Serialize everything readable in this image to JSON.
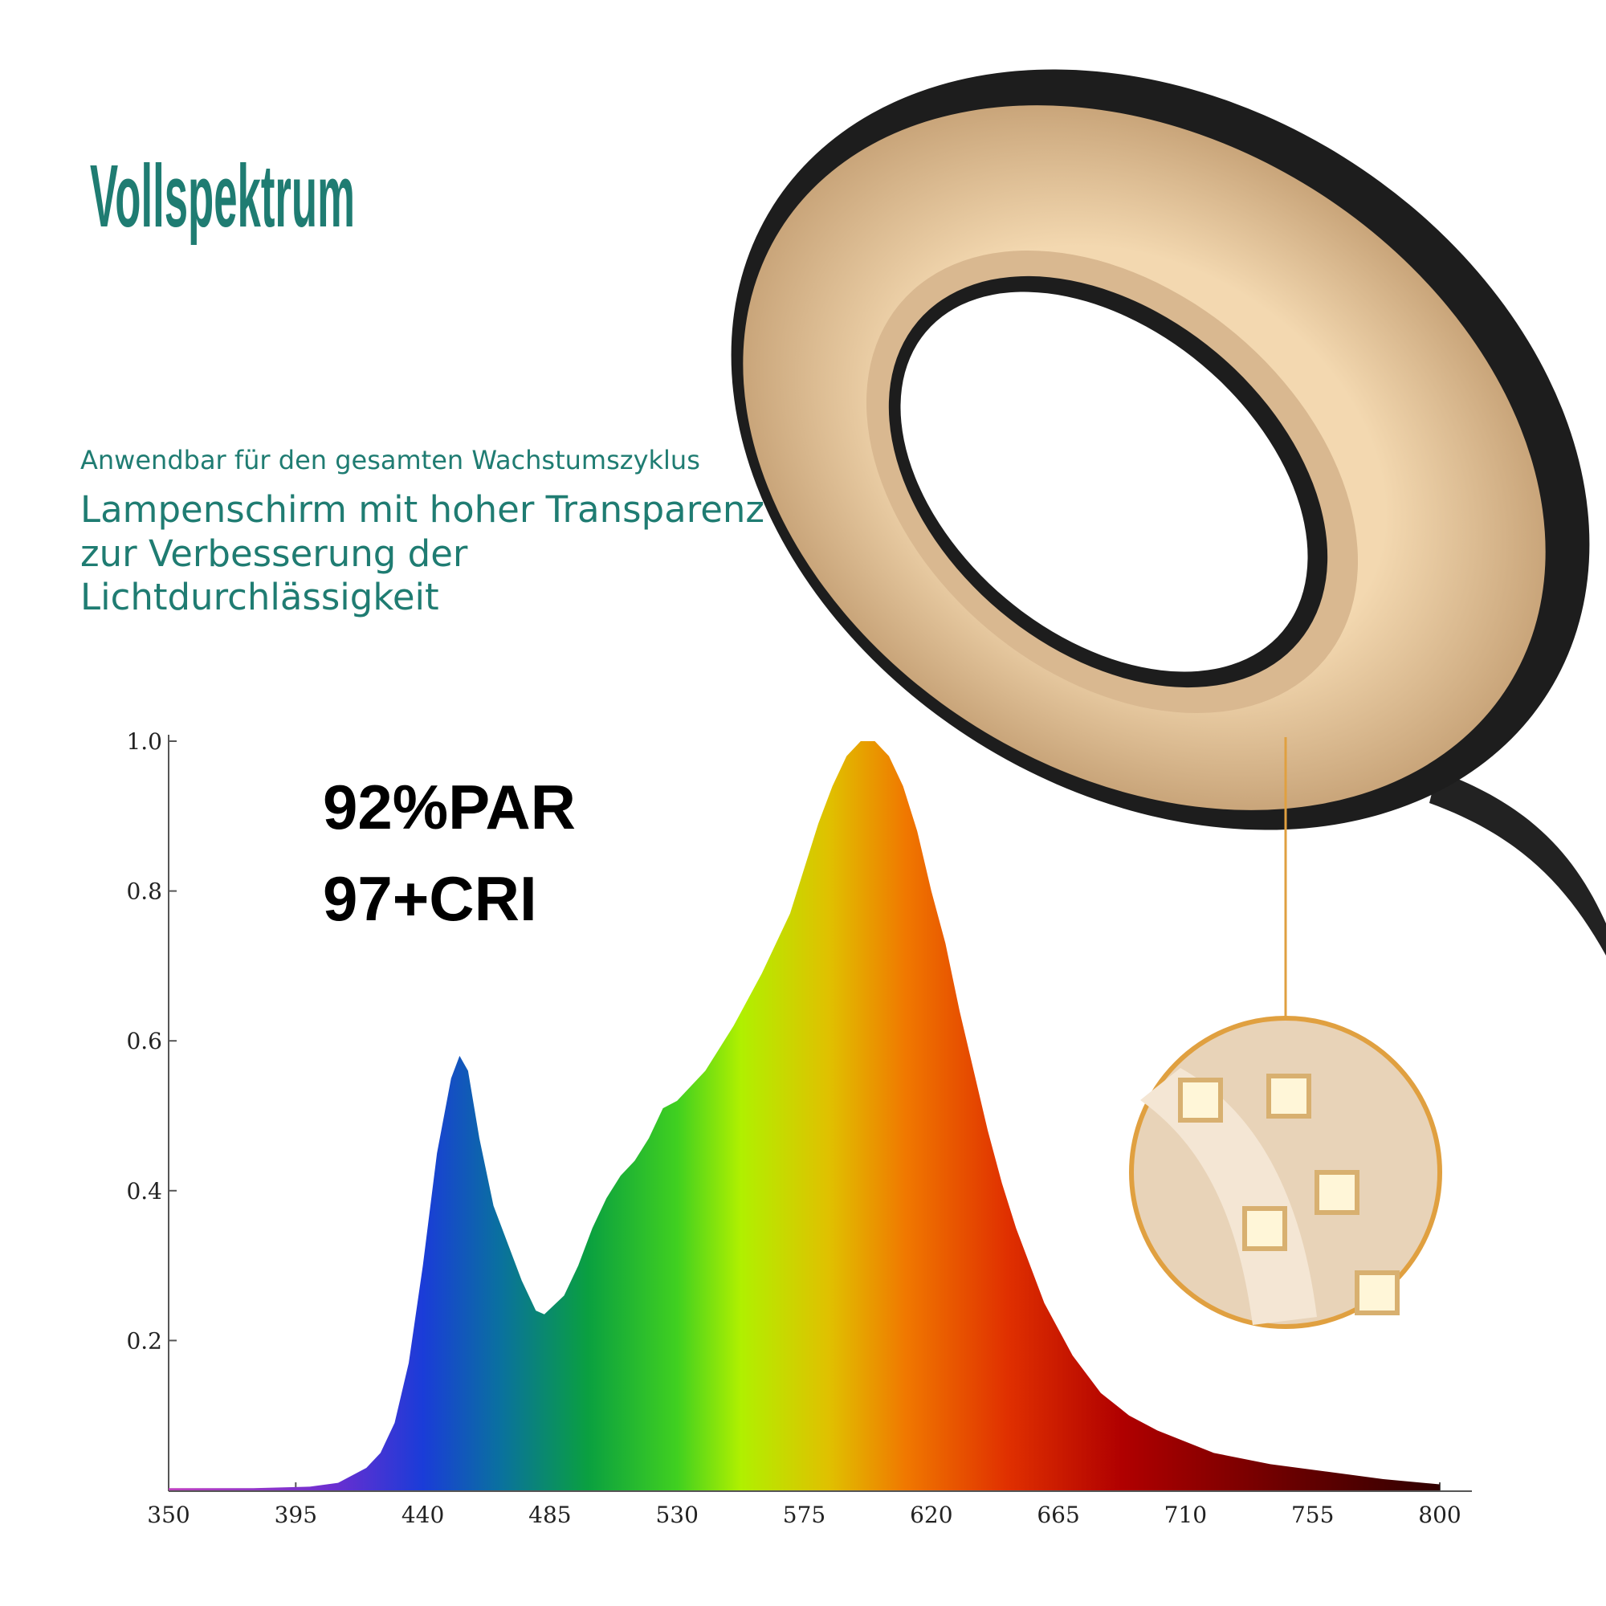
{
  "chart_data": {
    "type": "area",
    "title": "Vollspektrum",
    "subtitle": "Anwendbar für den gesamten Wachstumszyklus",
    "description": [
      "Lampenschirm mit hoher Transparenz",
      "zur Verbesserung der",
      "Lichtdurchlässigkeit"
    ],
    "annotations": [
      "92%PAR",
      "97+CRI"
    ],
    "x": [
      350,
      380,
      400,
      410,
      420,
      425,
      430,
      435,
      440,
      445,
      450,
      453,
      456,
      460,
      465,
      470,
      475,
      480,
      483,
      490,
      495,
      500,
      505,
      510,
      515,
      520,
      525,
      530,
      540,
      550,
      560,
      570,
      575,
      580,
      585,
      590,
      595,
      600,
      605,
      610,
      615,
      620,
      625,
      630,
      635,
      640,
      645,
      650,
      660,
      670,
      680,
      690,
      700,
      720,
      740,
      760,
      780,
      800
    ],
    "values": [
      0.003,
      0.003,
      0.005,
      0.01,
      0.03,
      0.05,
      0.09,
      0.17,
      0.3,
      0.45,
      0.55,
      0.58,
      0.56,
      0.47,
      0.38,
      0.33,
      0.28,
      0.24,
      0.235,
      0.26,
      0.3,
      0.35,
      0.39,
      0.42,
      0.44,
      0.47,
      0.51,
      0.52,
      0.56,
      0.62,
      0.69,
      0.77,
      0.83,
      0.89,
      0.94,
      0.98,
      1.0,
      1.0,
      0.98,
      0.94,
      0.88,
      0.8,
      0.73,
      0.64,
      0.56,
      0.48,
      0.41,
      0.35,
      0.25,
      0.18,
      0.13,
      0.1,
      0.08,
      0.05,
      0.035,
      0.025,
      0.015,
      0.008
    ],
    "xlim": [
      350,
      800
    ],
    "xticks": [
      350,
      395,
      440,
      485,
      530,
      575,
      620,
      665,
      710,
      755,
      800
    ],
    "ylim": [
      0,
      1
    ],
    "yticks": [
      0.2,
      0.4,
      0.6,
      0.8,
      {
        "value": 1,
        "label": "1.0"
      }
    ]
  }
}
